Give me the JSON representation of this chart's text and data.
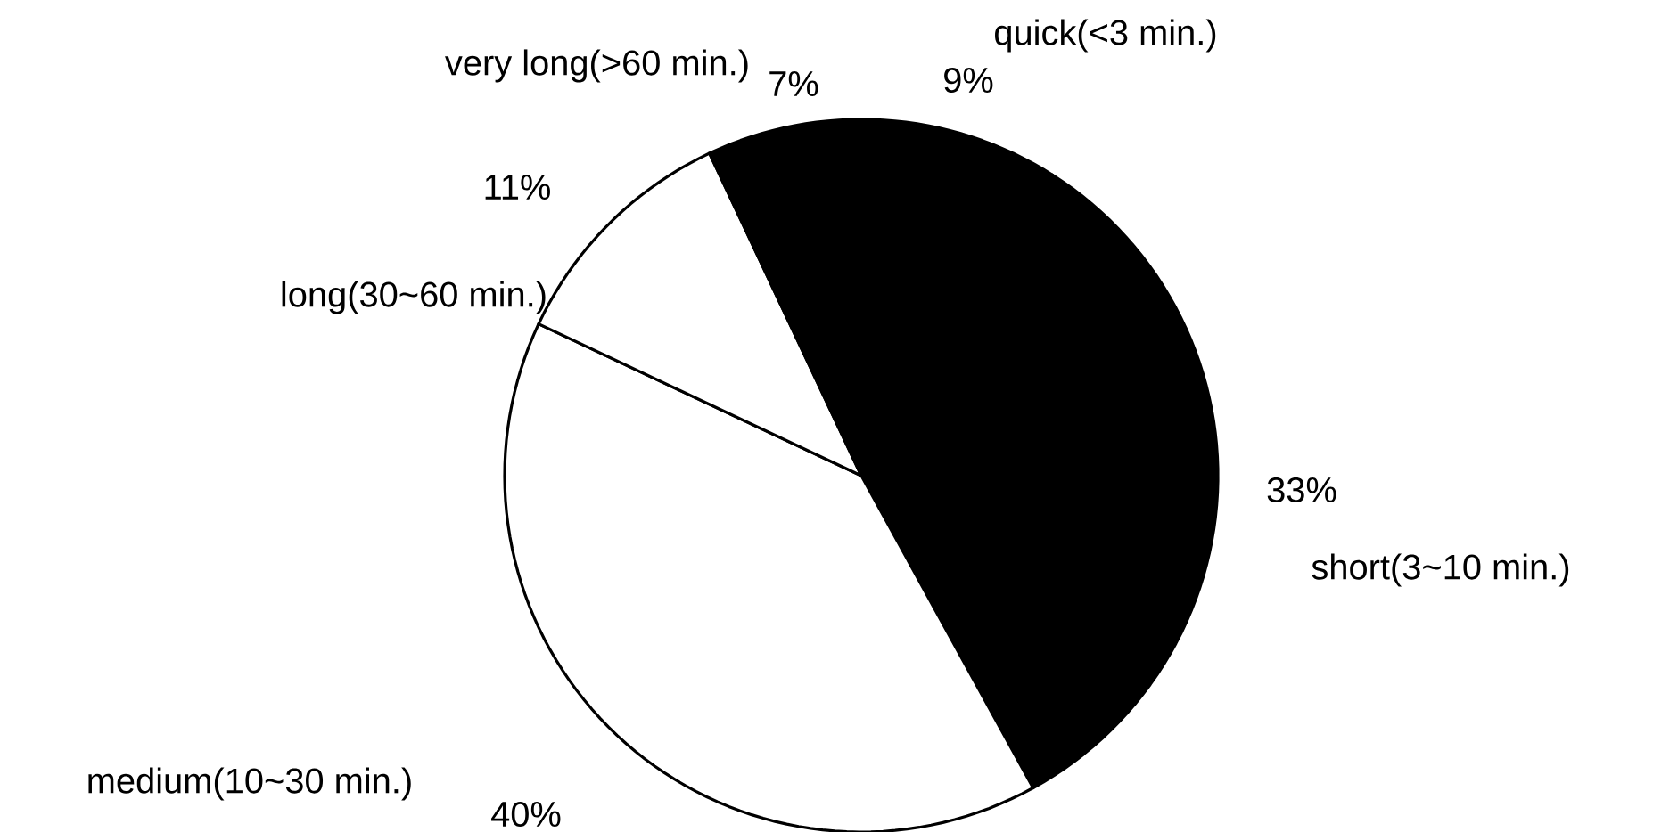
{
  "chart_data": {
    "type": "pie",
    "categories": [
      "quick(<3 min.)",
      "short(3~10 min.)",
      "medium(10~30 min.)",
      "long(30~60 min.)",
      "very long(>60 min.)"
    ],
    "values": [
      9,
      33,
      40,
      11,
      7
    ],
    "colors": [
      "#000000",
      "#000000",
      "#ffffff",
      "#ffffff",
      "#000000"
    ],
    "value_labels": [
      "9%",
      "33%",
      "40%",
      "11%",
      "7%"
    ]
  }
}
